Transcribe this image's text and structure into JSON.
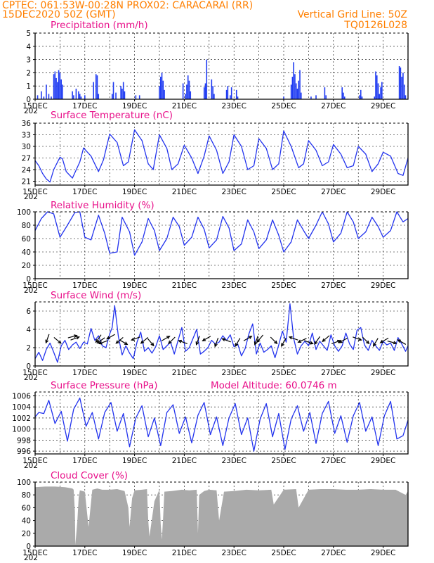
{
  "header": {
    "line1_left": "CPTEC:   061:53W-00:28N   PROX02: CARACARAI (RR)",
    "line2_left": "15DEC2020 50Z (GMT)",
    "line2_right": "Vertical Grid Line: 50Z",
    "line3_right": "TQ0126L028"
  },
  "x_axis": {
    "ticks": [
      "15DEC",
      "17DEC",
      "19DEC",
      "21DEC",
      "23DEC",
      "25DEC",
      "27DEC",
      "29DEC"
    ],
    "corner_label": "202",
    "range_days": [
      0,
      15
    ]
  },
  "colors": {
    "line": "#2233ee",
    "bars": "#1f3bf2",
    "cloud": "#aaaaaa",
    "title": "#e8108a",
    "header": "#ff7f00"
  },
  "chart_data": [
    {
      "type": "bar",
      "title": "Precipitation (mm/h)",
      "ylim": [
        0,
        5
      ],
      "yticks": [
        0,
        1,
        2,
        3,
        4,
        5
      ],
      "x": [
        0.1,
        0.25,
        0.35,
        0.45,
        0.55,
        0.65,
        0.75,
        0.8,
        0.85,
        0.9,
        0.95,
        1.0,
        1.05,
        1.1,
        1.5,
        1.55,
        1.65,
        1.75,
        1.8,
        1.85,
        2.0,
        2.35,
        2.45,
        2.5,
        2.55,
        3.1,
        3.15,
        3.25,
        3.45,
        3.5,
        3.55,
        3.6,
        4.05,
        4.2,
        5.0,
        5.05,
        5.1,
        5.15,
        5.2,
        5.95,
        6.05,
        6.1,
        6.15,
        6.2,
        6.25,
        6.8,
        6.85,
        6.9,
        7.1,
        7.15,
        7.2,
        7.7,
        7.75,
        7.85,
        7.9,
        8.1,
        8.15,
        10.0,
        10.3,
        10.35,
        10.4,
        10.45,
        10.5,
        10.55,
        10.6,
        10.65,
        10.7,
        11.1,
        11.3,
        11.65,
        11.7,
        12.35,
        12.4,
        12.45,
        13.05,
        13.1,
        13.15,
        13.65,
        13.7,
        13.75,
        13.8,
        13.85,
        13.9,
        13.95,
        14.65,
        14.7,
        14.75,
        14.8,
        14.85,
        14.9
      ],
      "values": [
        0.3,
        0.6,
        0.2,
        1.1,
        0.4,
        0.2,
        1.9,
        2.1,
        1.6,
        1.3,
        2.2,
        2.0,
        1.5,
        1.1,
        0.6,
        0.3,
        0.8,
        0.6,
        0.4,
        0.2,
        0.3,
        1.3,
        1.9,
        1.8,
        0.4,
        0.4,
        1.3,
        0.5,
        1.0,
        0.8,
        1.3,
        0.6,
        0.3,
        0.3,
        1.0,
        1.7,
        2.0,
        1.4,
        0.7,
        1.2,
        0.4,
        1.1,
        1.8,
        1.4,
        0.6,
        0.9,
        1.2,
        3.0,
        1.5,
        1.0,
        0.4,
        0.7,
        1.0,
        0.3,
        0.9,
        0.7,
        0.2,
        0.2,
        1.1,
        1.7,
        2.8,
        1.9,
        1.2,
        0.8,
        1.4,
        2.2,
        0.5,
        0.2,
        0.3,
        0.9,
        0.3,
        0.9,
        0.5,
        0.2,
        0.3,
        0.7,
        0.2,
        0.2,
        2.1,
        1.8,
        1.2,
        0.4,
        0.9,
        1.3,
        2.5,
        2.4,
        1.7,
        2.0,
        1.1,
        0.3
      ]
    },
    {
      "type": "line",
      "title": "Surface Temperature (nC)",
      "ylim": [
        20,
        36
      ],
      "yticks": [
        21,
        24,
        27,
        30,
        33,
        36
      ],
      "x": [
        0,
        0.15,
        0.3,
        0.45,
        0.6,
        0.75,
        1.0,
        1.1,
        1.25,
        1.5,
        1.8,
        1.95,
        2.25,
        2.55,
        2.75,
        3.0,
        3.3,
        3.55,
        3.75,
        4.0,
        4.3,
        4.55,
        4.75,
        5.0,
        5.3,
        5.5,
        5.75,
        6.0,
        6.3,
        6.55,
        6.8,
        7.0,
        7.3,
        7.55,
        7.8,
        8.0,
        8.3,
        8.55,
        8.8,
        9.0,
        9.3,
        9.55,
        9.8,
        10.0,
        10.3,
        10.6,
        10.8,
        11.0,
        11.3,
        11.55,
        11.8,
        12.0,
        12.3,
        12.55,
        12.8,
        13.0,
        13.3,
        13.55,
        13.8,
        14.0,
        14.3,
        14.6,
        14.8,
        15.0
      ],
      "values": [
        26.3,
        25.0,
        23.0,
        21.6,
        20.8,
        24.0,
        27.2,
        26.8,
        23.5,
        21.8,
        26.0,
        29.6,
        27.5,
        23.5,
        26.5,
        33.2,
        31.0,
        25.0,
        26.0,
        34.3,
        31.5,
        25.5,
        24.0,
        33.0,
        29.5,
        24.0,
        25.5,
        30.3,
        27.0,
        23.0,
        27.5,
        32.7,
        29.0,
        23.0,
        26.0,
        33.0,
        30.0,
        24.0,
        25.0,
        32.0,
        29.5,
        24.0,
        25.5,
        34.0,
        30.0,
        24.5,
        25.5,
        31.5,
        29.0,
        25.0,
        26.0,
        30.5,
        28.0,
        24.5,
        25.0,
        30.0,
        28.0,
        23.5,
        25.5,
        28.5,
        27.5,
        23.0,
        22.5,
        27.0
      ]
    },
    {
      "type": "line",
      "title": "Relative Humidity (%)",
      "ylim": [
        0,
        100
      ],
      "yticks": [
        0,
        20,
        40,
        60,
        80,
        100
      ],
      "x": [
        0,
        0.25,
        0.5,
        0.75,
        1.0,
        1.3,
        1.6,
        1.8,
        2.0,
        2.25,
        2.55,
        2.8,
        3.0,
        3.3,
        3.5,
        3.8,
        4.0,
        4.3,
        4.55,
        4.8,
        5.0,
        5.3,
        5.55,
        5.8,
        6.0,
        6.3,
        6.55,
        6.8,
        7.0,
        7.3,
        7.55,
        7.8,
        8.0,
        8.3,
        8.55,
        8.8,
        9.0,
        9.3,
        9.55,
        9.8,
        10.0,
        10.3,
        10.55,
        10.8,
        11.0,
        11.3,
        11.55,
        11.8,
        12.0,
        12.3,
        12.55,
        12.8,
        13.0,
        13.3,
        13.55,
        13.8,
        14.0,
        14.3,
        14.55,
        14.8,
        15.0
      ],
      "values": [
        72,
        90,
        100,
        97,
        62,
        80,
        99,
        100,
        62,
        58,
        95,
        68,
        38,
        40,
        92,
        70,
        35,
        55,
        90,
        72,
        42,
        60,
        92,
        78,
        50,
        62,
        92,
        74,
        46,
        58,
        93,
        76,
        42,
        52,
        88,
        70,
        45,
        58,
        88,
        65,
        40,
        55,
        88,
        72,
        60,
        80,
        100,
        82,
        55,
        68,
        100,
        85,
        60,
        70,
        92,
        78,
        62,
        72,
        100,
        85,
        90
      ]
    },
    {
      "type": "line",
      "title": "Surface Wind (m/s)",
      "ylim": [
        0,
        7
      ],
      "yticks": [
        0,
        2,
        4,
        6
      ],
      "x": [
        0,
        0.15,
        0.3,
        0.45,
        0.6,
        0.75,
        0.9,
        1.05,
        1.2,
        1.35,
        1.5,
        1.65,
        1.8,
        1.95,
        2.1,
        2.25,
        2.4,
        2.55,
        2.7,
        2.85,
        3.0,
        3.1,
        3.2,
        3.35,
        3.5,
        3.65,
        3.8,
        3.95,
        4.1,
        4.25,
        4.4,
        4.55,
        4.7,
        4.85,
        5.0,
        5.15,
        5.3,
        5.45,
        5.6,
        5.75,
        5.9,
        6.05,
        6.2,
        6.35,
        6.5,
        6.65,
        6.8,
        6.95,
        7.1,
        7.25,
        7.4,
        7.55,
        7.7,
        7.85,
        8.0,
        8.15,
        8.3,
        8.45,
        8.6,
        8.75,
        8.9,
        9.05,
        9.2,
        9.35,
        9.5,
        9.65,
        9.8,
        9.95,
        10.1,
        10.25,
        10.4,
        10.55,
        10.7,
        10.85,
        11.0,
        11.15,
        11.3,
        11.45,
        11.6,
        11.75,
        11.9,
        12.05,
        12.2,
        12.35,
        12.5,
        12.65,
        12.8,
        12.95,
        13.1,
        13.25,
        13.4,
        13.55,
        13.7,
        13.85,
        14.0,
        14.15,
        14.3,
        14.45,
        14.6,
        14.75,
        14.9,
        15.0
      ],
      "values": [
        0.8,
        1.5,
        0.6,
        1.8,
        2.5,
        1.5,
        0.4,
        2.2,
        2.8,
        1.8,
        2.3,
        2.6,
        1.9,
        2.6,
        2.4,
        4.1,
        2.8,
        3.3,
        2.2,
        2.0,
        3.5,
        4.2,
        6.6,
        3.2,
        1.2,
        2.2,
        1.4,
        0.8,
        2.6,
        3.7,
        1.6,
        2.0,
        1.4,
        2.1,
        3.3,
        1.8,
        2.2,
        2.6,
        1.3,
        2.8,
        4.2,
        1.6,
        2.0,
        3.0,
        4.0,
        1.3,
        1.6,
        2.0,
        2.8,
        2.4,
        2.6,
        3.3,
        2.8,
        3.4,
        2.1,
        2.4,
        1.1,
        1.9,
        3.5,
        4.6,
        1.3,
        2.5,
        1.5,
        1.8,
        2.2,
        0.9,
        2.3,
        3.8,
        2.6,
        6.8,
        3.0,
        1.3,
        2.2,
        2.7,
        2.2,
        3.6,
        1.8,
        2.7,
        2.2,
        1.7,
        3.4,
        2.2,
        1.6,
        2.2,
        3.6,
        2.4,
        1.8,
        3.9,
        4.2,
        2.3,
        1.7,
        2.8,
        2.2,
        1.7,
        2.7,
        2.3,
        2.5,
        1.7,
        3.1,
        2.4,
        1.6,
        2.2
      ],
      "arrows": {
        "x": [
          0.5,
          0.9,
          1.5,
          1.6,
          2.55,
          2.65,
          2.75,
          3.05,
          3.4,
          3.55,
          4.05,
          4.4,
          4.65,
          5.25,
          5.5,
          5.95,
          6.55,
          6.9,
          7.3,
          7.7,
          8.15,
          8.55,
          8.9,
          9.05,
          9.6,
          10.0,
          10.4,
          10.75,
          11.0,
          11.35,
          11.7,
          12.1,
          12.4,
          12.95,
          13.3,
          13.7,
          14.05,
          14.35,
          14.75
        ],
        "speed": [
          3.0,
          2.8,
          3.2,
          3.0,
          3.0,
          2.8,
          2.6,
          3.2,
          2.8,
          2.6,
          3.0,
          2.8,
          2.6,
          3.0,
          2.8,
          2.6,
          2.8,
          3.0,
          2.6,
          2.8,
          2.6,
          3.0,
          2.8,
          3.0,
          2.8,
          2.6,
          3.0,
          2.8,
          2.6,
          2.8,
          3.0,
          2.6,
          2.8,
          3.0,
          2.8,
          2.6,
          2.8,
          2.6,
          2.6
        ],
        "toward_deg": [
          200,
          130,
          75,
          70,
          215,
          235,
          250,
          240,
          230,
          120,
          250,
          230,
          140,
          60,
          225,
          290,
          200,
          240,
          200,
          290,
          210,
          60,
          200,
          220,
          135,
          210,
          290,
          245,
          110,
          215,
          230,
          70,
          240,
          110,
          135,
          210,
          240,
          105,
          300
        ]
      }
    },
    {
      "type": "line",
      "title": "Surface Pressure (hPa)",
      "annotation": "Model Altitude: 60.0746 m",
      "ylim": [
        995.5,
        1006.7
      ],
      "yticks": [
        996,
        998,
        1000,
        1002,
        1004,
        1006
      ],
      "x": [
        0,
        0.15,
        0.35,
        0.55,
        0.8,
        1.05,
        1.3,
        1.55,
        1.8,
        2.05,
        2.3,
        2.55,
        2.8,
        3.05,
        3.3,
        3.55,
        3.8,
        4.05,
        4.3,
        4.55,
        4.8,
        5.05,
        5.3,
        5.55,
        5.8,
        6.05,
        6.3,
        6.55,
        6.8,
        7.05,
        7.3,
        7.55,
        7.8,
        8.05,
        8.3,
        8.55,
        8.8,
        9.05,
        9.3,
        9.55,
        9.8,
        10.05,
        10.3,
        10.55,
        10.8,
        11.05,
        11.3,
        11.55,
        11.8,
        12.05,
        12.3,
        12.55,
        12.8,
        13.05,
        13.3,
        13.55,
        13.8,
        14.05,
        14.3,
        14.55,
        14.8,
        15.0
      ],
      "values": [
        1002.2,
        1003.0,
        1002.8,
        1005.2,
        1001.0,
        1003.2,
        997.8,
        1003.6,
        1005.6,
        1000.5,
        1003.0,
        998.2,
        1003.0,
        1004.8,
        999.6,
        1002.8,
        996.8,
        1002.0,
        1004.2,
        998.6,
        1002.0,
        997.0,
        1003.0,
        1004.4,
        999.2,
        1002.2,
        997.5,
        1002.5,
        1004.8,
        999.0,
        1002.2,
        997.0,
        1002.0,
        1004.6,
        999.0,
        1002.0,
        996.0,
        1001.8,
        1004.6,
        998.6,
        1002.8,
        996.3,
        1001.8,
        1004.2,
        999.6,
        1003.0,
        997.4,
        1002.8,
        1005.0,
        999.2,
        1002.4,
        997.6,
        1002.4,
        1004.8,
        999.6,
        1002.2,
        997.0,
        1002.4,
        1005.0,
        998.2,
        998.8,
        1001.6
      ]
    },
    {
      "type": "area",
      "title": "Cloud Cover (%)",
      "ylim": [
        0,
        100
      ],
      "yticks": [
        0,
        20,
        40,
        60,
        80,
        100
      ],
      "x": [
        0,
        0.4,
        0.8,
        1.2,
        1.5,
        1.55,
        1.6,
        1.62,
        1.7,
        1.75,
        1.8,
        2.0,
        2.15,
        2.3,
        2.5,
        2.7,
        3.0,
        3.3,
        3.6,
        3.75,
        3.8,
        3.9,
        4.0,
        4.3,
        4.5,
        4.55,
        4.6,
        4.8,
        5.0,
        5.05,
        5.1,
        5.15,
        5.2,
        5.5,
        5.9,
        6.2,
        6.5,
        6.55,
        6.6,
        6.8,
        7.0,
        7.3,
        7.4,
        7.6,
        8.0,
        8.5,
        9.0,
        9.5,
        9.6,
        10.0,
        10.5,
        10.6,
        11.0,
        11.5,
        12.0,
        12.5,
        13.0,
        13.5,
        14.0,
        14.5,
        14.9,
        15.0
      ],
      "values": [
        92,
        93,
        93,
        92,
        90,
        88,
        55,
        2,
        40,
        75,
        87,
        85,
        30,
        88,
        90,
        88,
        88,
        89,
        86,
        60,
        30,
        75,
        87,
        88,
        89,
        40,
        15,
        70,
        88,
        35,
        10,
        45,
        85,
        86,
        88,
        87,
        88,
        20,
        80,
        86,
        88,
        87,
        40,
        85,
        86,
        88,
        87,
        88,
        65,
        88,
        89,
        60,
        88,
        89,
        89,
        88,
        88,
        89,
        88,
        88,
        80,
        86
      ]
    }
  ]
}
